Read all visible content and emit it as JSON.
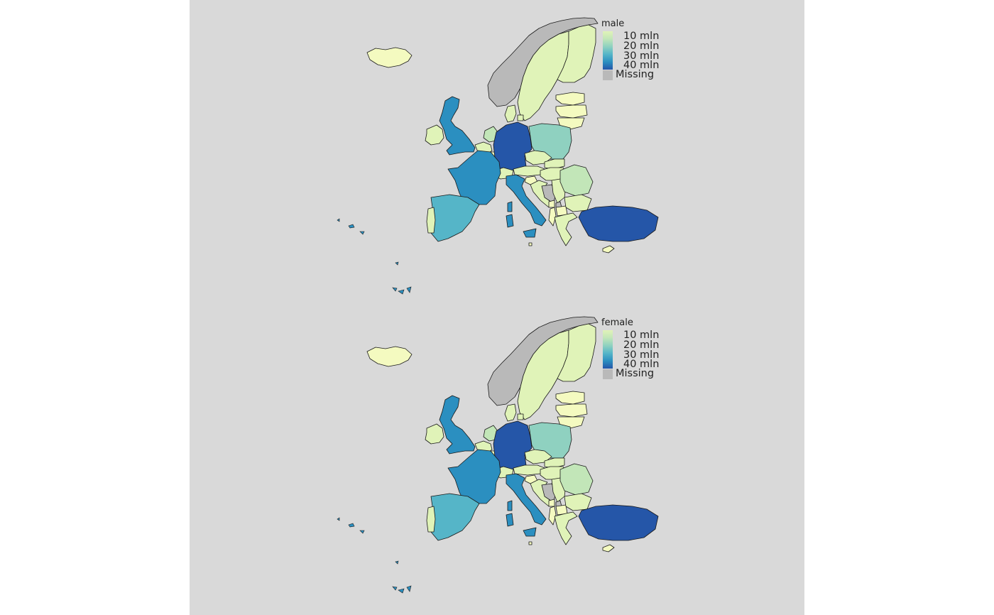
{
  "colors": {
    "background": "#d9d9d9",
    "missing": "#b9b9b9",
    "scale": [
      "#e0f3b8",
      "#c2e6b8",
      "#8fd1c0",
      "#55b5c8",
      "#2b8fc0",
      "#2556a8"
    ],
    "lightest": "#f4fac0"
  },
  "panels": [
    {
      "id": "male",
      "legend": {
        "title": "male",
        "labels": [
          "10 mln",
          "20 mln",
          "30 mln",
          "40 mln"
        ],
        "missing_label": "Missing"
      }
    },
    {
      "id": "female",
      "legend": {
        "title": "female",
        "labels": [
          "10 mln",
          "20 mln",
          "30 mln",
          "40 mln"
        ],
        "missing_label": "Missing"
      }
    }
  ],
  "regions": [
    {
      "name": "iceland",
      "value_mln": 0.2
    },
    {
      "name": "norway",
      "value_mln": null
    },
    {
      "name": "sweden",
      "value_mln": 5
    },
    {
      "name": "finland",
      "value_mln": 2.7
    },
    {
      "name": "estonia",
      "value_mln": 0.6
    },
    {
      "name": "latvia",
      "value_mln": 0.9
    },
    {
      "name": "lithuania",
      "value_mln": 1.4
    },
    {
      "name": "denmark",
      "value_mln": 2.9
    },
    {
      "name": "united-kingdom",
      "value_mln": 32
    },
    {
      "name": "ireland",
      "value_mln": 2.4
    },
    {
      "name": "netherlands",
      "value_mln": 8.6
    },
    {
      "name": "belgium",
      "value_mln": 5.6
    },
    {
      "name": "luxembourg",
      "value_mln": 0.3
    },
    {
      "name": "germany",
      "value_mln": 41
    },
    {
      "name": "poland",
      "value_mln": 18.6
    },
    {
      "name": "czechia",
      "value_mln": 5.2
    },
    {
      "name": "slovakia",
      "value_mln": 2.7
    },
    {
      "name": "austria",
      "value_mln": 4.3
    },
    {
      "name": "switzerland",
      "value_mln": 4.2
    },
    {
      "name": "hungary",
      "value_mln": 4.7
    },
    {
      "name": "slovenia",
      "value_mln": 1
    },
    {
      "name": "croatia",
      "value_mln": 2
    },
    {
      "name": "bosnia",
      "value_mln": null
    },
    {
      "name": "serbia",
      "value_mln": 3.4
    },
    {
      "name": "montenegro",
      "value_mln": 0.3
    },
    {
      "name": "kosovo",
      "value_mln": null
    },
    {
      "name": "albania",
      "value_mln": 1.4
    },
    {
      "name": "north-macedonia",
      "value_mln": 1
    },
    {
      "name": "romania",
      "value_mln": 9.7
    },
    {
      "name": "bulgaria",
      "value_mln": 3.4
    },
    {
      "name": "greece",
      "value_mln": 5.2
    },
    {
      "name": "turkey",
      "value_mln": 41
    },
    {
      "name": "cyprus",
      "value_mln": 0.4
    },
    {
      "name": "france",
      "value_mln": 32
    },
    {
      "name": "spain",
      "value_mln": 23
    },
    {
      "name": "portugal",
      "value_mln": 4.9
    },
    {
      "name": "italy",
      "value_mln": 29
    },
    {
      "name": "corsica",
      "value_mln": 32
    },
    {
      "name": "sardinia",
      "value_mln": 29
    },
    {
      "name": "sicily",
      "value_mln": 29
    },
    {
      "name": "malta",
      "value_mln": 0.2
    }
  ]
}
